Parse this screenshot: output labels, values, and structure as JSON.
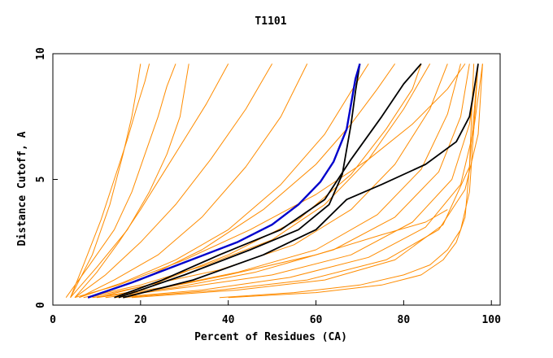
{
  "chart_data": {
    "type": "line",
    "title": "T1101",
    "xlabel": "Percent of Residues (CA)",
    "ylabel": "Distance Cutoff, A",
    "xlim": [
      0,
      102
    ],
    "ylim": [
      0,
      10
    ],
    "xticks": [
      0,
      20,
      40,
      60,
      80,
      100
    ],
    "yticks": [
      0,
      5,
      10
    ],
    "grid": false,
    "legend": "none",
    "colors": {
      "models": "#ff8c00",
      "reference": "#000000",
      "highlight": "#0000cc"
    },
    "series": [
      {
        "group": "models",
        "x": [
          3,
          8,
          14,
          18,
          21,
          24,
          26,
          28
        ],
        "y": [
          0.3,
          1.5,
          3.0,
          4.5,
          6.0,
          7.5,
          8.7,
          9.6
        ]
      },
      {
        "group": "models",
        "x": [
          4,
          10,
          17,
          22,
          26,
          29,
          31
        ],
        "y": [
          0.3,
          1.5,
          3.0,
          4.5,
          6.0,
          7.5,
          9.6
        ]
      },
      {
        "group": "models",
        "x": [
          4,
          9,
          13,
          16,
          18,
          19,
          20
        ],
        "y": [
          0.3,
          2.0,
          4.0,
          6.0,
          7.5,
          8.5,
          9.6
        ]
      },
      {
        "group": "models",
        "x": [
          5,
          10,
          15,
          20,
          25,
          30,
          35,
          40
        ],
        "y": [
          0.3,
          1.3,
          2.5,
          3.8,
          5.2,
          6.6,
          8.0,
          9.6
        ]
      },
      {
        "group": "models",
        "x": [
          5,
          12,
          20,
          28,
          36,
          44,
          50
        ],
        "y": [
          0.3,
          1.2,
          2.5,
          4.0,
          5.8,
          7.8,
          9.6
        ]
      },
      {
        "group": "models",
        "x": [
          6,
          14,
          24,
          34,
          44,
          52,
          58
        ],
        "y": [
          0.3,
          1.0,
          2.0,
          3.5,
          5.5,
          7.5,
          9.6
        ]
      },
      {
        "group": "models",
        "x": [
          6,
          16,
          28,
          40,
          52,
          62,
          68,
          72
        ],
        "y": [
          0.3,
          0.9,
          1.8,
          3.0,
          4.8,
          6.8,
          8.5,
          9.6
        ]
      },
      {
        "group": "models",
        "x": [
          7,
          20,
          35,
          50,
          62,
          72,
          80,
          86
        ],
        "y": [
          0.3,
          0.8,
          1.6,
          2.6,
          4.0,
          5.8,
          7.8,
          9.6
        ]
      },
      {
        "group": "models",
        "x": [
          8,
          22,
          38,
          55,
          68,
          78,
          86,
          90
        ],
        "y": [
          0.3,
          0.8,
          1.4,
          2.4,
          3.8,
          5.6,
          7.8,
          9.6
        ]
      },
      {
        "group": "models",
        "x": [
          9,
          25,
          42,
          60,
          74,
          84,
          90,
          93
        ],
        "y": [
          0.3,
          0.7,
          1.3,
          2.2,
          3.6,
          5.4,
          7.6,
          9.6
        ]
      },
      {
        "group": "models",
        "x": [
          10,
          28,
          46,
          64,
          78,
          88,
          93,
          95
        ],
        "y": [
          0.3,
          0.7,
          1.3,
          2.2,
          3.5,
          5.3,
          7.5,
          9.6
        ]
      },
      {
        "group": "models",
        "x": [
          12,
          30,
          50,
          68,
          82,
          91,
          95,
          97
        ],
        "y": [
          0.3,
          0.7,
          1.2,
          2.0,
          3.3,
          5.0,
          7.2,
          9.6
        ]
      },
      {
        "group": "models",
        "x": [
          14,
          34,
          54,
          72,
          85,
          93,
          96,
          98
        ],
        "y": [
          0.3,
          0.6,
          1.1,
          1.9,
          3.1,
          4.8,
          7.0,
          9.6
        ]
      },
      {
        "group": "models",
        "x": [
          16,
          38,
          58,
          76,
          88,
          94,
          97,
          98
        ],
        "y": [
          0.3,
          0.6,
          1.0,
          1.8,
          3.0,
          4.6,
          6.8,
          9.6
        ]
      },
      {
        "group": "models",
        "x": [
          18,
          42,
          62,
          78,
          89,
          95,
          97
        ],
        "y": [
          0.3,
          0.6,
          1.0,
          1.8,
          3.2,
          5.5,
          9.6
        ]
      },
      {
        "group": "models",
        "x": [
          38,
          55,
          70,
          80,
          86,
          90,
          93,
          95,
          96,
          97
        ],
        "y": [
          0.3,
          0.5,
          0.8,
          1.2,
          1.6,
          2.2,
          3.0,
          4.5,
          7.0,
          9.6
        ]
      },
      {
        "group": "models",
        "x": [
          40,
          60,
          75,
          84,
          89,
          92,
          94,
          95,
          96
        ],
        "y": [
          0.3,
          0.5,
          0.8,
          1.2,
          1.8,
          2.5,
          3.5,
          5.5,
          9.6
        ]
      },
      {
        "group": "models",
        "x": [
          20,
          40,
          60,
          75,
          85,
          90
        ],
        "y": [
          0.5,
          1.2,
          2.0,
          2.8,
          3.3,
          3.8
        ]
      },
      {
        "group": "models",
        "x": [
          5,
          15,
          30,
          45,
          60,
          72,
          82,
          90,
          94
        ],
        "y": [
          0.3,
          0.8,
          1.8,
          3.0,
          4.4,
          5.8,
          7.2,
          8.6,
          9.6
        ]
      },
      {
        "group": "models",
        "x": [
          4,
          7,
          11,
          14,
          17,
          19,
          21,
          22
        ],
        "y": [
          0.3,
          1.6,
          3.4,
          5.0,
          6.6,
          7.8,
          8.9,
          9.6
        ]
      },
      {
        "group": "models",
        "x": [
          8,
          20,
          34,
          48,
          60,
          68,
          74,
          78
        ],
        "y": [
          0.3,
          1.0,
          2.2,
          3.8,
          5.6,
          7.2,
          8.6,
          9.6
        ]
      },
      {
        "group": "models",
        "x": [
          10,
          24,
          40,
          56,
          68,
          76,
          82,
          84
        ],
        "y": [
          0.3,
          0.9,
          2.0,
          3.4,
          5.2,
          7.0,
          8.6,
          9.6
        ]
      },
      {
        "group": "reference",
        "x": [
          14,
          25,
          38,
          52,
          62,
          68,
          75,
          80,
          84
        ],
        "y": [
          0.3,
          1.0,
          2.0,
          3.0,
          4.2,
          5.8,
          7.5,
          8.8,
          9.6
        ]
      },
      {
        "group": "reference",
        "x": [
          15,
          30,
          45,
          56,
          63,
          66,
          67,
          68,
          69,
          70
        ],
        "y": [
          0.3,
          1.2,
          2.2,
          3.0,
          4.0,
          5.2,
          6.2,
          7.2,
          8.5,
          9.6
        ]
      },
      {
        "group": "reference",
        "x": [
          16,
          32,
          48,
          60,
          67,
          75,
          85,
          92,
          95,
          96,
          97
        ],
        "y": [
          0.3,
          1.0,
          2.0,
          3.0,
          4.2,
          4.8,
          5.6,
          6.5,
          7.5,
          8.5,
          9.6
        ]
      },
      {
        "group": "highlight",
        "x": [
          8,
          18,
          30,
          42,
          50,
          56,
          61,
          64,
          67,
          68,
          69,
          70
        ],
        "y": [
          0.3,
          0.9,
          1.7,
          2.5,
          3.2,
          4.0,
          4.9,
          5.7,
          7.0,
          8.0,
          9.0,
          9.6
        ]
      }
    ]
  }
}
